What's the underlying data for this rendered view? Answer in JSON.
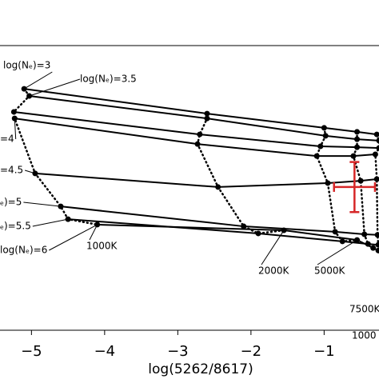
{
  "chart_data": {
    "type": "line",
    "xlabel": "log(5262/8617)",
    "xlim": [
      -5.43,
      -0.25
    ],
    "ylim": [
      0,
      10
    ],
    "xticks": [
      {
        "value": -5,
        "label": "−5"
      },
      {
        "value": -4,
        "label": "−4"
      },
      {
        "value": -3,
        "label": "−3"
      },
      {
        "value": -2,
        "label": "−2"
      },
      {
        "value": -1,
        "label": "−1"
      }
    ],
    "series": [
      {
        "name": "log(Nₑ)=3",
        "color": "#000000",
        "x": [
          -5.1,
          -2.6,
          -1.0,
          -0.55,
          -0.28
        ],
        "values": [
          8.48,
          7.61,
          7.11,
          6.97,
          6.88
        ]
      },
      {
        "name": "log(Nₑ)=3.5",
        "color": "#000000",
        "x": [
          -5.03,
          -2.6,
          -0.98,
          -0.55,
          -0.25
        ],
        "values": [
          8.23,
          7.44,
          6.83,
          6.71,
          6.66
        ]
      },
      {
        "color": "#000000",
        "x": [
          -5.24,
          -2.7,
          -1.05,
          -0.55,
          -0.25
        ],
        "values": [
          7.67,
          6.88,
          6.46,
          6.43,
          6.4
        ]
      },
      {
        "name": "=4",
        "color": "#000000",
        "x": [
          -5.23,
          -2.73,
          -1.1,
          -0.6,
          -0.3
        ],
        "values": [
          7.44,
          6.54,
          6.12,
          6.12,
          6.18
        ]
      },
      {
        "name": "=4.5",
        "color": "#000000",
        "x": [
          -4.95,
          -2.45,
          -0.95,
          -0.5,
          -0.28
        ],
        "values": [
          5.51,
          5.03,
          5.17,
          5.25,
          5.31
        ]
      },
      {
        "name": "ₑ)=5",
        "color": "#000000",
        "x": [
          -4.6,
          -2.1,
          -0.85,
          -0.45,
          -0.27
        ],
        "values": [
          4.35,
          3.65,
          3.46,
          3.37,
          3.35
        ]
      },
      {
        "name": "ₑ)=5.5",
        "color": "#000000",
        "x": [
          -4.5,
          -1.9,
          -0.75,
          -0.4,
          -0.26
        ],
        "values": [
          3.9,
          3.4,
          3.12,
          3.03,
          3.0
        ]
      },
      {
        "name": "log(Nₑ)=6",
        "color": "#000000",
        "x": [
          -4.1,
          -1.55,
          -0.55,
          -0.33,
          -0.26
        ],
        "values": [
          3.71,
          3.51,
          3.17,
          2.89,
          2.8
        ]
      }
    ],
    "temperatures": [
      "1000K",
      "2000K",
      "5000K",
      "7500K",
      "1000"
    ],
    "observation": {
      "color": "#d62728",
      "x": -0.585,
      "y": 5.03,
      "xerr": 0.28,
      "yerr": 0.88
    }
  }
}
